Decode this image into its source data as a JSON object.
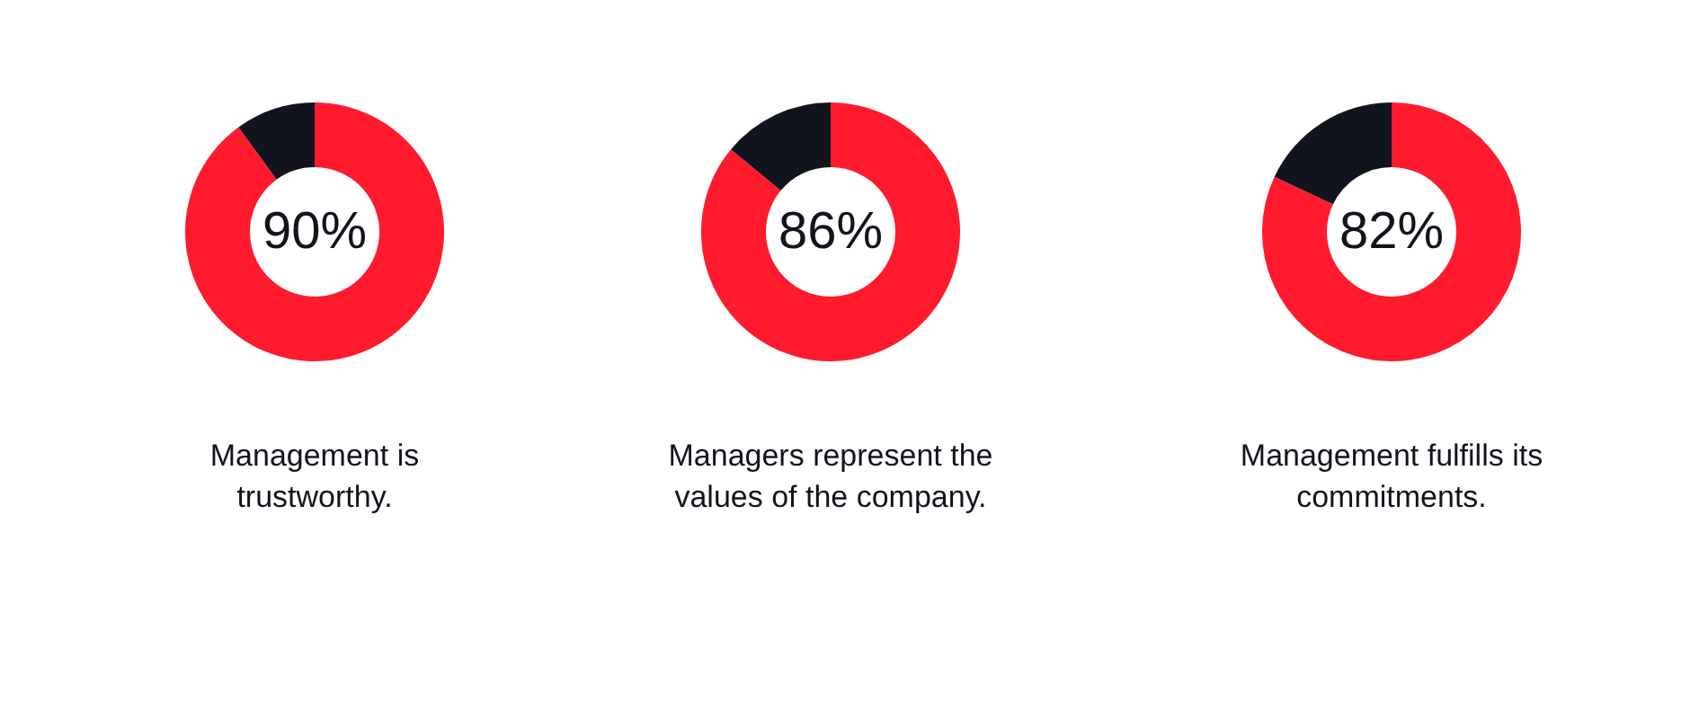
{
  "chart_data": [
    {
      "type": "donut",
      "title": "Management is trustworthy.",
      "categories": [
        null,
        null
      ],
      "values": [
        90,
        10
      ],
      "colors": [
        "#ff1a2e",
        "#11141c"
      ],
      "value_labels": [
        "90%",
        null
      ]
    },
    {
      "type": "donut",
      "title": "Managers represent the values of the company.",
      "categories": [
        null,
        null
      ],
      "values": [
        86,
        14
      ],
      "colors": [
        "#ff1a2e",
        "#11141c"
      ],
      "value_labels": [
        "86%",
        null
      ]
    },
    {
      "type": "donut",
      "title": "Management fulfills its commitments.",
      "categories": [
        null,
        null
      ],
      "values": [
        82,
        18
      ],
      "colors": [
        "#ff1a2e",
        "#11141c"
      ],
      "value_labels": [
        "82%",
        null
      ]
    }
  ]
}
